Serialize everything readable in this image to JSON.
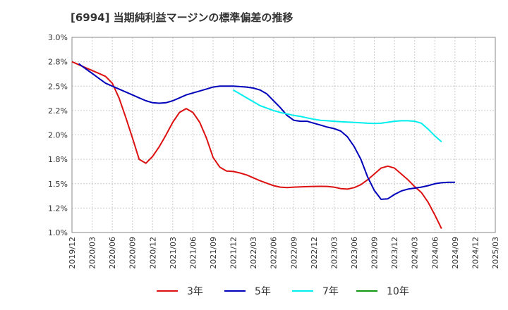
{
  "chart_data": {
    "type": "line",
    "title": "[6994]  当期純利益マージンの標準偏差の推移",
    "xlabel": "",
    "ylabel": "",
    "ylim": [
      1.0,
      3.0
    ],
    "grid": true,
    "legend_position": "bottom",
    "y_ticks": [
      "1.0%",
      "1.2%",
      "1.5%",
      "1.8%",
      "2.0%",
      "2.2%",
      "2.5%",
      "2.8%",
      "3.0%"
    ],
    "y_tick_values": [
      1.0,
      1.25,
      1.5,
      1.75,
      2.0,
      2.25,
      2.5,
      2.75,
      3.0
    ],
    "x_ticks": [
      "2019/12",
      "2020/03",
      "2020/06",
      "2020/09",
      "2020/12",
      "2021/03",
      "2021/06",
      "2021/09",
      "2021/12",
      "2022/03",
      "2022/06",
      "2022/09",
      "2022/12",
      "2023/03",
      "2023/06",
      "2023/09",
      "2023/12",
      "2024/03",
      "2024/06",
      "2024/09",
      "2024/12",
      "2025/03"
    ],
    "series": [
      {
        "name": "3年",
        "color": "#dd1111",
        "points": [
          [
            0,
            2.75
          ],
          [
            1,
            2.72
          ],
          [
            2,
            2.69
          ],
          [
            3,
            2.66
          ],
          [
            4,
            2.63
          ],
          [
            5,
            2.6
          ],
          [
            6,
            2.53
          ],
          [
            7,
            2.38
          ],
          [
            8,
            2.18
          ],
          [
            9,
            1.97
          ],
          [
            10,
            1.75
          ],
          [
            11,
            1.71
          ],
          [
            12,
            1.78
          ],
          [
            13,
            1.88
          ],
          [
            14,
            2.0
          ],
          [
            15,
            2.13
          ],
          [
            16,
            2.23
          ],
          [
            17,
            2.27
          ],
          [
            18,
            2.23
          ],
          [
            19,
            2.13
          ],
          [
            20,
            1.97
          ],
          [
            21,
            1.77
          ],
          [
            22,
            1.67
          ],
          [
            23,
            1.63
          ],
          [
            24,
            1.625
          ],
          [
            25,
            1.61
          ],
          [
            26,
            1.59
          ],
          [
            27,
            1.56
          ],
          [
            28,
            1.53
          ],
          [
            29,
            1.505
          ],
          [
            30,
            1.48
          ],
          [
            31,
            1.465
          ],
          [
            32,
            1.46
          ],
          [
            33,
            1.465
          ],
          [
            34,
            1.468
          ],
          [
            35,
            1.47
          ],
          [
            36,
            1.472
          ],
          [
            37,
            1.473
          ],
          [
            38,
            1.472
          ],
          [
            39,
            1.465
          ],
          [
            40,
            1.45
          ],
          [
            41,
            1.445
          ],
          [
            42,
            1.46
          ],
          [
            43,
            1.49
          ],
          [
            44,
            1.54
          ],
          [
            45,
            1.6
          ],
          [
            46,
            1.66
          ],
          [
            47,
            1.68
          ],
          [
            48,
            1.66
          ],
          [
            49,
            1.6
          ],
          [
            50,
            1.54
          ],
          [
            51,
            1.47
          ],
          [
            52,
            1.41
          ],
          [
            53,
            1.31
          ],
          [
            54,
            1.18
          ],
          [
            55,
            1.04
          ]
        ]
      },
      {
        "name": "5年",
        "color": "#0000bb",
        "points": [
          [
            1,
            2.73
          ],
          [
            2,
            2.68
          ],
          [
            3,
            2.63
          ],
          [
            4,
            2.58
          ],
          [
            5,
            2.53
          ],
          [
            6,
            2.5
          ],
          [
            7,
            2.47
          ],
          [
            8,
            2.44
          ],
          [
            9,
            2.41
          ],
          [
            10,
            2.38
          ],
          [
            11,
            2.35
          ],
          [
            12,
            2.33
          ],
          [
            13,
            2.325
          ],
          [
            14,
            2.33
          ],
          [
            15,
            2.35
          ],
          [
            16,
            2.38
          ],
          [
            17,
            2.41
          ],
          [
            18,
            2.43
          ],
          [
            19,
            2.45
          ],
          [
            20,
            2.47
          ],
          [
            21,
            2.49
          ],
          [
            22,
            2.5
          ],
          [
            23,
            2.5
          ],
          [
            24,
            2.5
          ],
          [
            25,
            2.495
          ],
          [
            26,
            2.49
          ],
          [
            27,
            2.48
          ],
          [
            28,
            2.46
          ],
          [
            29,
            2.42
          ],
          [
            30,
            2.35
          ],
          [
            31,
            2.28
          ],
          [
            32,
            2.2
          ],
          [
            33,
            2.15
          ],
          [
            34,
            2.14
          ],
          [
            35,
            2.14
          ],
          [
            36,
            2.12
          ],
          [
            37,
            2.1
          ],
          [
            38,
            2.08
          ],
          [
            39,
            2.065
          ],
          [
            40,
            2.04
          ],
          [
            41,
            1.98
          ],
          [
            42,
            1.88
          ],
          [
            43,
            1.75
          ],
          [
            44,
            1.57
          ],
          [
            45,
            1.43
          ],
          [
            46,
            1.34
          ],
          [
            47,
            1.345
          ],
          [
            48,
            1.39
          ],
          [
            49,
            1.425
          ],
          [
            50,
            1.445
          ],
          [
            51,
            1.455
          ],
          [
            52,
            1.465
          ],
          [
            53,
            1.48
          ],
          [
            54,
            1.5
          ],
          [
            55,
            1.51
          ],
          [
            56,
            1.515
          ],
          [
            57,
            1.515
          ]
        ]
      },
      {
        "name": "7年",
        "color": "#00eeee",
        "points": [
          [
            24,
            2.46
          ],
          [
            25,
            2.42
          ],
          [
            26,
            2.38
          ],
          [
            27,
            2.34
          ],
          [
            28,
            2.3
          ],
          [
            29,
            2.275
          ],
          [
            30,
            2.25
          ],
          [
            31,
            2.23
          ],
          [
            32,
            2.215
          ],
          [
            33,
            2.2
          ],
          [
            34,
            2.19
          ],
          [
            35,
            2.175
          ],
          [
            36,
            2.16
          ],
          [
            37,
            2.15
          ],
          [
            38,
            2.145
          ],
          [
            39,
            2.14
          ],
          [
            40,
            2.135
          ],
          [
            41,
            2.132
          ],
          [
            42,
            2.128
          ],
          [
            43,
            2.124
          ],
          [
            44,
            2.12
          ],
          [
            45,
            2.118
          ],
          [
            46,
            2.12
          ],
          [
            47,
            2.13
          ],
          [
            48,
            2.14
          ],
          [
            49,
            2.145
          ],
          [
            50,
            2.145
          ],
          [
            51,
            2.14
          ],
          [
            52,
            2.12
          ],
          [
            53,
            2.06
          ],
          [
            54,
            1.99
          ],
          [
            55,
            1.93
          ]
        ]
      },
      {
        "name": "10年",
        "color": "#119911",
        "points": []
      }
    ]
  }
}
